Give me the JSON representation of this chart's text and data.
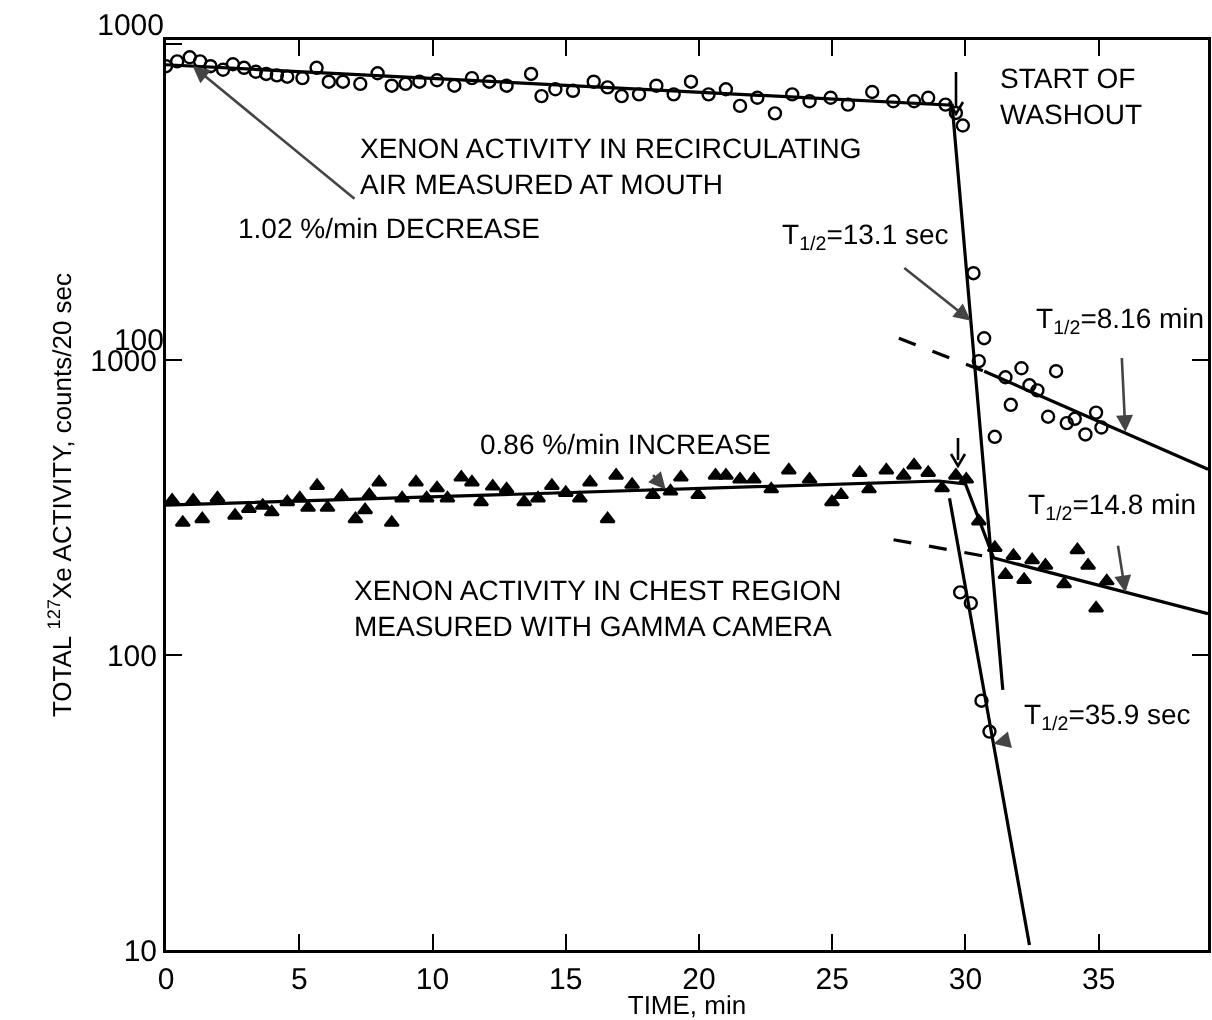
{
  "chart_data": [
    {
      "type": "scatter",
      "xlim": [
        0,
        39.1
      ],
      "ylim": [
        1.35,
        1030
      ],
      "yticks": [
        100,
        1000
      ],
      "log": "y",
      "grid": false,
      "tick_labels": "y",
      "series": [
        {
          "marker": "circle",
          "color": "#000000",
          "x": [
            0,
            0.42,
            0.89,
            1.28,
            1.67,
            2.14,
            2.51,
            2.93,
            3.37,
            3.76,
            4.16,
            4.55,
            5.12,
            5.65,
            6.11,
            6.64,
            7.29,
            7.94,
            8.47,
            8.99,
            9.51,
            10.17,
            10.82,
            11.48,
            12.13,
            12.78,
            13.7,
            14.09,
            14.61,
            15.27,
            16.05,
            16.57,
            17.1,
            17.75,
            18.4,
            19.05,
            19.7,
            20.36,
            21.01,
            21.54,
            22.19,
            22.85,
            23.5,
            24.15,
            24.94,
            25.59,
            26.5,
            27.29,
            28.07,
            28.6,
            29.25,
            29.64,
            29.9
          ],
          "values": [
            851,
            881,
            908,
            881,
            851,
            829,
            863,
            841,
            817,
            804,
            796,
            788,
            780,
            841,
            760,
            760,
            748,
            808,
            738,
            748,
            760,
            768,
            738,
            780,
            760,
            738,
            804,
            684,
            719,
            711,
            760,
            729,
            684,
            693,
            738,
            693,
            760,
            693,
            719,
            637,
            676,
            603,
            693,
            659,
            676,
            643,
            705,
            659,
            659,
            676,
            643,
            605,
            552
          ]
        },
        {
          "marker": "circle",
          "color": "#000000",
          "x": [
            30.3,
            30.7,
            30.5,
            31.5,
            32.1,
            31.7,
            31.1,
            32.4,
            32.7,
            33.4,
            33.1,
            33.8,
            34.1,
            34.5,
            34.9,
            35.1
          ],
          "values": [
            188,
            117,
            99,
            88,
            94,
            72,
            57,
            83,
            80,
            92,
            66,
            63,
            65,
            58,
            68,
            61
          ]
        },
        {
          "type": "line",
          "line_style": "solid",
          "color": "#000000",
          "x": [
            0,
            29.5,
            31.4
          ],
          "values": [
            860,
            640,
            9
          ]
        },
        {
          "type": "line",
          "line_style": "solid",
          "color": "#000000",
          "x": [
            30.7,
            39.1
          ],
          "values": [
            92,
            45
          ]
        },
        {
          "type": "line",
          "line_style": "dashed",
          "color": "#000000",
          "x": [
            27.5,
            30.7
          ],
          "values": [
            117,
            92
          ]
        }
      ],
      "annotations": [
        "XENON ACTIVITY IN RECIRCULATING\nAIR MEASURED AT MOUTH",
        {
          "text": "1.02 %/min DECREASE",
          "x": 1,
          "y": 852
        },
        "START OF\nWASHOUT",
        {
          "text": "T$_{1/2}$=13.1 sec",
          "x": 30.2,
          "y": 133
        },
        {
          "text": "T$_{1/2}$=8.16 min",
          "x": 36,
          "y": 59
        }
      ]
    },
    {
      "type": "scatter",
      "xlabel": "TIME, min",
      "ylabel": "TOTAL $^{127}$Xe ACTIVITY, counts/20 sec",
      "xlim": [
        0,
        39.1
      ],
      "xticks": [
        0,
        5,
        10,
        15,
        20,
        25,
        30,
        35
      ],
      "ylim": [
        10,
        12160
      ],
      "yticks": [
        10,
        100,
        1000
      ],
      "log": "y",
      "grid": false,
      "series": [
        {
          "marker": "triangle",
          "color": "#000000",
          "x": [
            0.23,
            0.63,
            1.02,
            1.36,
            1.93,
            2.59,
            3.11,
            3.63,
            3.97,
            4.55,
            5.02,
            5.33,
            5.67,
            6.06,
            6.59,
            7.11,
            7.47,
            7.63,
            8.0,
            8.47,
            8.86,
            9.38,
            9.78,
            10.17,
            10.56,
            11.08,
            11.48,
            11.82,
            12.26,
            12.78,
            13.44,
            13.96,
            14.48,
            15.0,
            15.53,
            15.91,
            16.57,
            16.89,
            17.49,
            18.27,
            18.93,
            19.32,
            19.97,
            20.62,
            21.01,
            21.54,
            22.06,
            22.71,
            23.37,
            24.15,
            24.99,
            25.33,
            26.03,
            26.38,
            27.03,
            27.68,
            28.07,
            28.6,
            29.12,
            29.64,
            30.03,
            30.5,
            31.1,
            31.8,
            31.5,
            32.2,
            32.5,
            33.0,
            33.7,
            34.2,
            34.6,
            34.9,
            35.3
          ],
          "values": [
            334,
            281,
            334,
            289,
            340,
            297,
            313,
            321,
            305,
            330,
            340,
            316,
            375,
            316,
            346,
            289,
            310,
            349,
            385,
            281,
            340,
            385,
            340,
            368,
            340,
            400,
            385,
            330,
            373,
            365,
            330,
            340,
            375,
            355,
            340,
            385,
            289,
            406,
            378,
            349,
            359,
            400,
            349,
            406,
            406,
            394,
            394,
            365,
            423,
            394,
            330,
            349,
            415,
            365,
            423,
            406,
            440,
            415,
            368,
            406,
            394,
            284,
            231,
            217,
            187,
            180,
            210,
            201,
            174,
            227,
            201,
            144,
            178
          ]
        },
        {
          "marker": "circle",
          "color": "#000000",
          "x": [
            29.8,
            30.2,
            30.6,
            30.9
          ],
          "values": [
            163,
            150,
            70,
            55
          ]
        },
        {
          "type": "line",
          "line_style": "solid",
          "color": "#000000",
          "x": [
            0,
            29,
            30,
            31.05
          ],
          "values": [
            322,
            389,
            380,
            214
          ]
        },
        {
          "type": "line",
          "line_style": "solid",
          "color": "#000000",
          "x": [
            31,
            39.1
          ],
          "values": [
            214,
            138
          ]
        },
        {
          "type": "line",
          "line_style": "dashed",
          "color": "#000000",
          "x": [
            27.3,
            31
          ],
          "values": [
            246,
            214
          ]
        },
        {
          "type": "line",
          "line_style": "solid",
          "color": "#000000",
          "x": [
            29.4,
            32.4
          ],
          "values": [
            340,
            10.4
          ]
        }
      ],
      "annotations": [
        {
          "text": "0.86 %/min INCREASE",
          "x": 18.75,
          "y": 364
        },
        {
          "text": "T$_{1/2}$=14.8 min",
          "x": 36,
          "y": 163
        },
        "XENON ACTIVITY IN CHEST REGION\nMEASURED WITH GAMMA CAMERA",
        {
          "text": "T$_{1/2}$=35.9 sec",
          "x": 31.05,
          "y": 50
        }
      ]
    }
  ]
}
